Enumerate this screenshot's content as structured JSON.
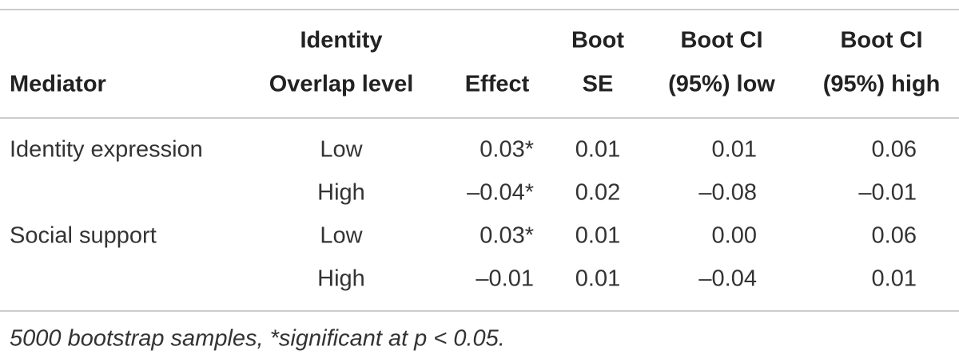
{
  "table": {
    "header": [
      [
        "Mediator"
      ],
      [
        "Identity",
        "Overlap level"
      ],
      [
        "Effect"
      ],
      [
        "Boot",
        "SE"
      ],
      [
        "Boot CI",
        "(95%) low"
      ],
      [
        "Boot CI",
        "(95%) high"
      ]
    ],
    "groups": [
      {
        "mediator": "Identity expression",
        "rows": [
          [
            "Low",
            "0.03*",
            "0.01",
            "0.01",
            "0.06"
          ],
          [
            "High",
            "–0.04*",
            "0.02",
            "–0.08",
            "–0.01"
          ]
        ]
      },
      {
        "mediator": "Social support",
        "rows": [
          [
            "Low",
            "0.03*",
            "0.01",
            "0.00",
            "0.06"
          ],
          [
            "High",
            "–0.01",
            "0.01",
            "–0.04",
            "0.01"
          ]
        ]
      }
    ],
    "footnote": "5000 bootstrap samples, *significant at p < 0.05."
  }
}
